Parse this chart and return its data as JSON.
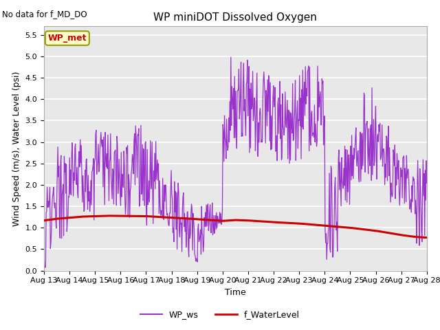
{
  "title": "WP miniDOT Dissolved Oxygen",
  "top_left_text": "No data for f_MD_DO",
  "xlabel": "Time",
  "ylabel": "Wind Speed (m/s), Water Level (psi)",
  "ylim": [
    0.0,
    5.7
  ],
  "yticks": [
    0.0,
    0.5,
    1.0,
    1.5,
    2.0,
    2.5,
    3.0,
    3.5,
    4.0,
    4.5,
    5.0,
    5.5
  ],
  "xtick_labels": [
    "Aug 13",
    "Aug 14",
    "Aug 15",
    "Aug 16",
    "Aug 17",
    "Aug 18",
    "Aug 19",
    "Aug 20",
    "Aug 21",
    "Aug 22",
    "Aug 23",
    "Aug 24",
    "Aug 25",
    "Aug 26",
    "Aug 27",
    "Aug 28"
  ],
  "legend_label_ws": "WP_ws",
  "legend_label_wl": "f_WaterLevel",
  "inset_label": "WP_met",
  "ws_color": "#9933CC",
  "wl_color": "#CC0000",
  "bg_color": "#E8E8E8",
  "grid_color": "#FFFFFF",
  "inset_bg": "#FFFFCC",
  "inset_border": "#999900",
  "title_fontsize": 11,
  "axis_fontsize": 9,
  "tick_fontsize": 8
}
